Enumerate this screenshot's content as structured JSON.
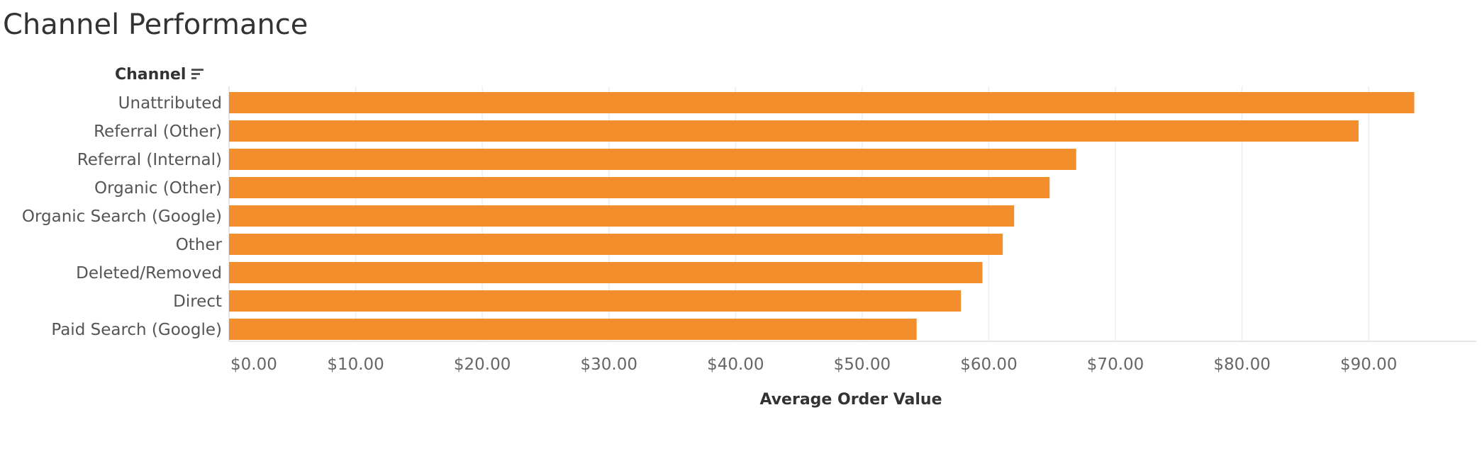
{
  "page": {
    "title": "Channel Performance",
    "dimension_header": "Channel",
    "sort_icon": "sort-descending-icon"
  },
  "colors": {
    "bar": "#F28E2B",
    "grid": "#EEEEEE",
    "axis_line": "#DDDDDD"
  },
  "chart_data": {
    "type": "bar",
    "orientation": "horizontal",
    "title": "Channel Performance",
    "ylabel": "Channel",
    "xlabel": "Average Order Value",
    "categories": [
      "Unattributed",
      "Referral (Other)",
      "Referral (Internal)",
      "Organic (Other)",
      "Organic Search (Google)",
      "Other",
      "Deleted/Removed",
      "Direct",
      "Paid Search (Google)"
    ],
    "values": [
      93.6,
      89.2,
      66.9,
      64.8,
      62.0,
      61.1,
      59.5,
      57.8,
      54.3
    ],
    "xlim": [
      0,
      98.5
    ],
    "ticks": [
      0,
      10,
      20,
      30,
      40,
      50,
      60,
      70,
      80,
      90
    ],
    "tick_labels": [
      "$0.00",
      "$10.00",
      "$20.00",
      "$30.00",
      "$40.00",
      "$50.00",
      "$60.00",
      "$70.00",
      "$80.00",
      "$90.00"
    ],
    "grid": true,
    "legend": "none"
  }
}
